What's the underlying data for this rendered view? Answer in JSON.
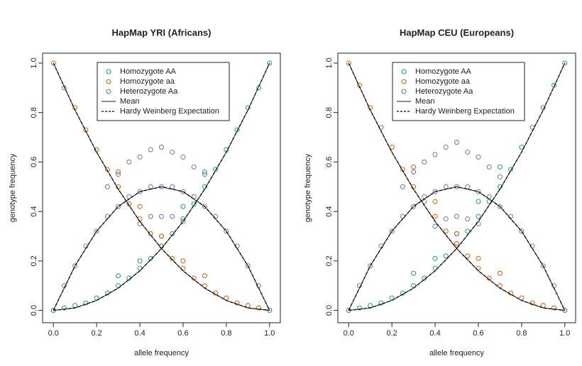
{
  "chart_data": [
    {
      "type": "scatter",
      "title": "HapMap YRI (Africans)",
      "x_label": "allele frequency",
      "y_label": "genotype frequency",
      "xlim": [
        -0.05,
        1.05
      ],
      "ylim": [
        -0.05,
        1.04
      ],
      "xticks": [
        {
          "value": 0,
          "label": "0.0"
        },
        0.2,
        0.4,
        0.6,
        0.8,
        {
          "value": 1,
          "label": "1.0"
        }
      ],
      "yticks": [
        {
          "value": 0,
          "label": "0.0"
        },
        0.2,
        0.4,
        0.6,
        0.8,
        {
          "value": 1,
          "label": "1.0"
        }
      ],
      "legend": "top",
      "series": [
        {
          "name": "Homozygote AA",
          "color": "#1b9e77",
          "style": "points",
          "x": [
            0,
            0.05,
            0.1,
            0.15,
            0.2,
            0.25,
            0.3,
            0.35,
            0.4,
            0.45,
            0.5,
            0.55,
            0.6,
            0.65,
            0.7,
            0.75,
            0.8,
            0.85,
            0.9,
            0.95,
            1,
            0.3,
            0.4,
            0.5,
            0.6,
            0.7
          ],
          "values": [
            0,
            0.01,
            0.02,
            0.03,
            0.05,
            0.07,
            0.1,
            0.13,
            0.17,
            0.21,
            0.26,
            0.31,
            0.37,
            0.43,
            0.5,
            0.57,
            0.65,
            0.73,
            0.82,
            0.9,
            1,
            0.14,
            0.2,
            0.3,
            0.42,
            0.56
          ]
        },
        {
          "name": "Homozygote aa",
          "color": "#d95f02",
          "style": "points",
          "x": [
            0,
            0.05,
            0.1,
            0.15,
            0.2,
            0.25,
            0.3,
            0.35,
            0.4,
            0.45,
            0.5,
            0.55,
            0.6,
            0.65,
            0.7,
            0.75,
            0.8,
            0.85,
            0.9,
            0.95,
            1,
            0.3,
            0.4,
            0.5,
            0.6,
            0.7
          ],
          "values": [
            1,
            0.9,
            0.82,
            0.73,
            0.65,
            0.57,
            0.5,
            0.43,
            0.37,
            0.31,
            0.26,
            0.21,
            0.17,
            0.13,
            0.1,
            0.07,
            0.05,
            0.03,
            0.02,
            0.01,
            0,
            0.56,
            0.42,
            0.3,
            0.2,
            0.14
          ]
        },
        {
          "name": "Heterozygote Aa",
          "color": "#7570b3",
          "style": "points",
          "x": [
            0,
            0.05,
            0.1,
            0.15,
            0.2,
            0.25,
            0.3,
            0.35,
            0.4,
            0.45,
            0.5,
            0.55,
            0.6,
            0.65,
            0.7,
            0.75,
            0.8,
            0.85,
            0.9,
            0.95,
            1,
            0.25,
            0.3,
            0.35,
            0.4,
            0.45,
            0.5,
            0.55,
            0.6,
            0.65,
            0.7,
            0.4,
            0.45,
            0.5,
            0.55,
            0.6
          ],
          "values": [
            0,
            0.1,
            0.18,
            0.26,
            0.32,
            0.38,
            0.42,
            0.46,
            0.48,
            0.5,
            0.5,
            0.5,
            0.48,
            0.46,
            0.42,
            0.38,
            0.32,
            0.26,
            0.18,
            0.1,
            0,
            0.5,
            0.55,
            0.6,
            0.62,
            0.65,
            0.66,
            0.64,
            0.62,
            0.58,
            0.55,
            0.35,
            0.38,
            0.38,
            0.38,
            0.36
          ]
        },
        {
          "name": "Mean",
          "color": "#444444",
          "style": "solid",
          "x": [
            0,
            0.1,
            0.2,
            0.3,
            0.4,
            0.5,
            0.6,
            0.7,
            0.8,
            0.9,
            1,
            null,
            0,
            0.1,
            0.2,
            0.3,
            0.4,
            0.5,
            0.6,
            0.7,
            0.8,
            0.9,
            1,
            null,
            0,
            0.1,
            0.2,
            0.3,
            0.4,
            0.5,
            0.6,
            0.7,
            0.8,
            0.9,
            1
          ],
          "values": [
            0,
            0.01,
            0.04,
            0.09,
            0.16,
            0.25,
            0.36,
            0.49,
            0.64,
            0.81,
            1,
            null,
            1,
            0.81,
            0.64,
            0.49,
            0.36,
            0.25,
            0.16,
            0.09,
            0.04,
            0.01,
            0,
            null,
            0,
            0.18,
            0.32,
            0.42,
            0.48,
            0.5,
            0.48,
            0.42,
            0.32,
            0.18,
            0
          ]
        },
        {
          "name": "Hardy Weinberg Expectation",
          "color": "#000000",
          "style": "dashed",
          "x": [
            0,
            0.1,
            0.2,
            0.3,
            0.4,
            0.5,
            0.6,
            0.7,
            0.8,
            0.9,
            1,
            null,
            0,
            0.1,
            0.2,
            0.3,
            0.4,
            0.5,
            0.6,
            0.7,
            0.8,
            0.9,
            1,
            null,
            0,
            0.1,
            0.2,
            0.3,
            0.4,
            0.5,
            0.6,
            0.7,
            0.8,
            0.9,
            1
          ],
          "values": [
            0,
            0.01,
            0.04,
            0.09,
            0.16,
            0.25,
            0.36,
            0.49,
            0.64,
            0.81,
            1,
            null,
            1,
            0.81,
            0.64,
            0.49,
            0.36,
            0.25,
            0.16,
            0.09,
            0.04,
            0.01,
            0,
            null,
            0,
            0.18,
            0.32,
            0.42,
            0.48,
            0.5,
            0.48,
            0.42,
            0.32,
            0.18,
            0
          ]
        }
      ]
    },
    {
      "type": "scatter",
      "title": "HapMap CEU (Europeans)",
      "x_label": "allele frequency",
      "y_label": "genotype frequency",
      "xlim": [
        -0.05,
        1.05
      ],
      "ylim": [
        -0.05,
        1.04
      ],
      "xticks": [
        {
          "value": 0,
          "label": "0.0"
        },
        0.2,
        0.4,
        0.6,
        0.8,
        {
          "value": 1,
          "label": "1.0"
        }
      ],
      "yticks": [
        {
          "value": 0,
          "label": "0.0"
        },
        0.2,
        0.4,
        0.6,
        0.8,
        {
          "value": 1,
          "label": "1.0"
        }
      ],
      "legend": "top",
      "series": [
        {
          "name": "Homozygote AA",
          "color": "#1b9e77",
          "style": "points",
          "x": [
            0,
            0.05,
            0.1,
            0.15,
            0.2,
            0.25,
            0.3,
            0.35,
            0.4,
            0.45,
            0.5,
            0.55,
            0.6,
            0.65,
            0.7,
            0.75,
            0.8,
            0.85,
            0.9,
            0.95,
            1,
            0.3,
            0.4,
            0.5,
            0.6,
            0.7
          ],
          "values": [
            0,
            0.01,
            0.02,
            0.03,
            0.05,
            0.07,
            0.1,
            0.13,
            0.17,
            0.22,
            0.27,
            0.32,
            0.38,
            0.44,
            0.5,
            0.57,
            0.66,
            0.74,
            0.82,
            0.91,
            1,
            0.15,
            0.21,
            0.31,
            0.44,
            0.58
          ]
        },
        {
          "name": "Homozygote aa",
          "color": "#d95f02",
          "style": "points",
          "x": [
            0,
            0.05,
            0.1,
            0.15,
            0.2,
            0.25,
            0.3,
            0.35,
            0.4,
            0.45,
            0.5,
            0.55,
            0.6,
            0.65,
            0.7,
            0.75,
            0.8,
            0.85,
            0.9,
            0.95,
            1,
            0.3,
            0.4,
            0.5,
            0.6,
            0.7
          ],
          "values": [
            1,
            0.91,
            0.82,
            0.74,
            0.66,
            0.57,
            0.5,
            0.44,
            0.38,
            0.32,
            0.27,
            0.22,
            0.17,
            0.13,
            0.1,
            0.07,
            0.05,
            0.03,
            0.02,
            0.01,
            0,
            0.58,
            0.44,
            0.31,
            0.21,
            0.15
          ]
        },
        {
          "name": "Heterozygote Aa",
          "color": "#7570b3",
          "style": "points",
          "x": [
            0,
            0.05,
            0.1,
            0.15,
            0.2,
            0.25,
            0.3,
            0.35,
            0.4,
            0.45,
            0.5,
            0.55,
            0.6,
            0.65,
            0.7,
            0.75,
            0.8,
            0.85,
            0.9,
            0.95,
            1,
            0.25,
            0.3,
            0.35,
            0.4,
            0.45,
            0.5,
            0.55,
            0.6,
            0.65,
            0.7,
            0.4,
            0.45,
            0.5,
            0.55,
            0.6
          ],
          "values": [
            0,
            0.1,
            0.18,
            0.26,
            0.32,
            0.38,
            0.42,
            0.46,
            0.48,
            0.5,
            0.5,
            0.5,
            0.48,
            0.46,
            0.42,
            0.38,
            0.32,
            0.26,
            0.18,
            0.1,
            0,
            0.5,
            0.56,
            0.6,
            0.63,
            0.66,
            0.68,
            0.64,
            0.62,
            0.58,
            0.54,
            0.34,
            0.37,
            0.38,
            0.37,
            0.35
          ]
        },
        {
          "name": "Mean",
          "color": "#444444",
          "style": "solid",
          "x": [
            0,
            0.1,
            0.2,
            0.3,
            0.4,
            0.5,
            0.6,
            0.7,
            0.8,
            0.9,
            1,
            null,
            0,
            0.1,
            0.2,
            0.3,
            0.4,
            0.5,
            0.6,
            0.7,
            0.8,
            0.9,
            1,
            null,
            0,
            0.1,
            0.2,
            0.3,
            0.4,
            0.5,
            0.6,
            0.7,
            0.8,
            0.9,
            1
          ],
          "values": [
            0,
            0.01,
            0.04,
            0.09,
            0.16,
            0.25,
            0.36,
            0.49,
            0.64,
            0.81,
            1,
            null,
            1,
            0.81,
            0.64,
            0.49,
            0.36,
            0.25,
            0.16,
            0.09,
            0.04,
            0.01,
            0,
            null,
            0,
            0.18,
            0.32,
            0.42,
            0.48,
            0.5,
            0.48,
            0.42,
            0.32,
            0.18,
            0
          ]
        },
        {
          "name": "Hardy Weinberg Expectation",
          "color": "#000000",
          "style": "dashed",
          "x": [
            0,
            0.1,
            0.2,
            0.3,
            0.4,
            0.5,
            0.6,
            0.7,
            0.8,
            0.9,
            1,
            null,
            0,
            0.1,
            0.2,
            0.3,
            0.4,
            0.5,
            0.6,
            0.7,
            0.8,
            0.9,
            1,
            null,
            0,
            0.1,
            0.2,
            0.3,
            0.4,
            0.5,
            0.6,
            0.7,
            0.8,
            0.9,
            1
          ],
          "values": [
            0,
            0.01,
            0.04,
            0.09,
            0.16,
            0.25,
            0.36,
            0.49,
            0.64,
            0.81,
            1,
            null,
            1,
            0.81,
            0.64,
            0.49,
            0.36,
            0.25,
            0.16,
            0.09,
            0.04,
            0.01,
            0,
            null,
            0,
            0.18,
            0.32,
            0.42,
            0.48,
            0.5,
            0.48,
            0.42,
            0.32,
            0.18,
            0
          ]
        }
      ]
    }
  ]
}
